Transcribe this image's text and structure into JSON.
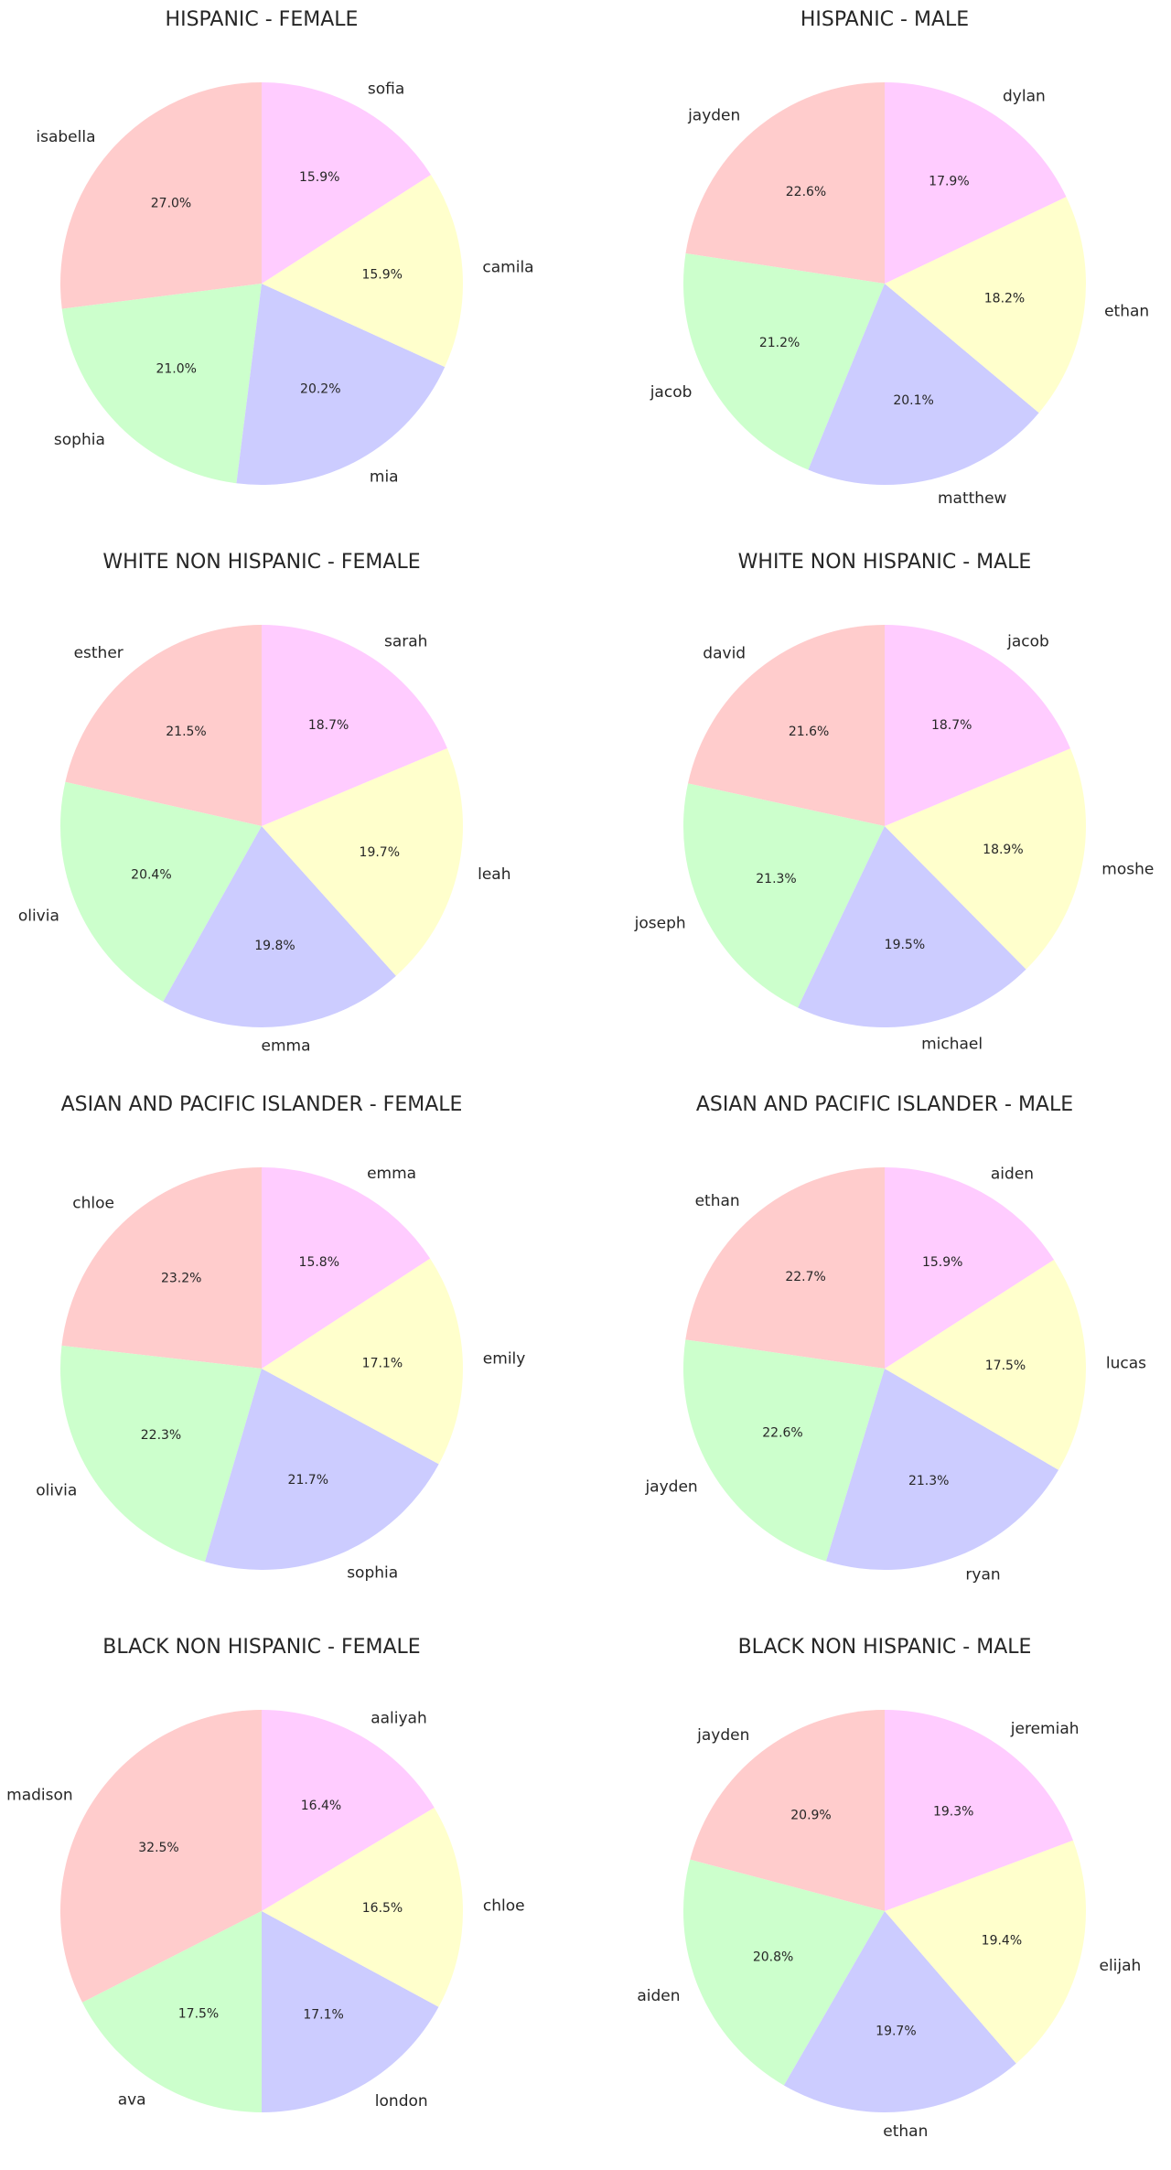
{
  "colors": {
    "slices": [
      "#ffcccc",
      "#ccffcc",
      "#ccccff",
      "#ffffcc",
      "#ffccff"
    ],
    "text": "#262626",
    "background": "#ffffff"
  },
  "chart_data": [
    {
      "type": "pie",
      "title": "HISPANIC - FEMALE",
      "labels": [
        "isabella",
        "sophia",
        "mia",
        "camila",
        "sofia"
      ],
      "values": [
        27.0,
        21.0,
        20.2,
        15.9,
        15.9
      ],
      "pct_labels": [
        "27.0%",
        "21.0%",
        "20.2%",
        "15.9%",
        "15.9%"
      ]
    },
    {
      "type": "pie",
      "title": "HISPANIC - MALE",
      "labels": [
        "jayden",
        "jacob",
        "matthew",
        "ethan",
        "dylan"
      ],
      "values": [
        22.6,
        21.2,
        20.1,
        18.2,
        17.9
      ],
      "pct_labels": [
        "22.6%",
        "21.2%",
        "20.1%",
        "18.2%",
        "17.9%"
      ]
    },
    {
      "type": "pie",
      "title": "WHITE NON HISPANIC - FEMALE",
      "labels": [
        "esther",
        "olivia",
        "emma",
        "leah",
        "sarah"
      ],
      "values": [
        21.5,
        20.4,
        19.8,
        19.7,
        18.7
      ],
      "pct_labels": [
        "21.5%",
        "20.4%",
        "19.8%",
        "19.7%",
        "18.7%"
      ]
    },
    {
      "type": "pie",
      "title": "WHITE NON HISPANIC - MALE",
      "labels": [
        "david",
        "joseph",
        "michael",
        "moshe",
        "jacob"
      ],
      "values": [
        21.6,
        21.3,
        19.5,
        18.9,
        18.7
      ],
      "pct_labels": [
        "21.6%",
        "21.3%",
        "19.5%",
        "18.9%",
        "18.7%"
      ]
    },
    {
      "type": "pie",
      "title": "ASIAN AND PACIFIC ISLANDER - FEMALE",
      "labels": [
        "chloe",
        "olivia",
        "sophia",
        "emily",
        "emma"
      ],
      "values": [
        23.2,
        22.3,
        21.7,
        17.1,
        15.8
      ],
      "pct_labels": [
        "23.2%",
        "22.3%",
        "21.7%",
        "17.1%",
        "15.8%"
      ]
    },
    {
      "type": "pie",
      "title": "ASIAN AND PACIFIC ISLANDER - MALE",
      "labels": [
        "ethan",
        "jayden",
        "ryan",
        "lucas",
        "aiden"
      ],
      "values": [
        22.7,
        22.6,
        21.3,
        17.5,
        15.9
      ],
      "pct_labels": [
        "22.7%",
        "22.6%",
        "21.3%",
        "17.5%",
        "15.9%"
      ]
    },
    {
      "type": "pie",
      "title": "BLACK NON HISPANIC - FEMALE",
      "labels": [
        "madison",
        "ava",
        "london",
        "chloe",
        "aaliyah"
      ],
      "values": [
        32.5,
        17.5,
        17.1,
        16.5,
        16.4
      ],
      "pct_labels": [
        "32.5%",
        "17.5%",
        "17.1%",
        "16.5%",
        "16.4%"
      ]
    },
    {
      "type": "pie",
      "title": "BLACK NON HISPANIC - MALE",
      "labels": [
        "jayden",
        "aiden",
        "ethan",
        "elijah",
        "jeremiah"
      ],
      "values": [
        20.9,
        20.8,
        19.7,
        19.4,
        19.3
      ],
      "pct_labels": [
        "20.9%",
        "20.8%",
        "19.7%",
        "19.4%",
        "19.3%"
      ]
    }
  ]
}
